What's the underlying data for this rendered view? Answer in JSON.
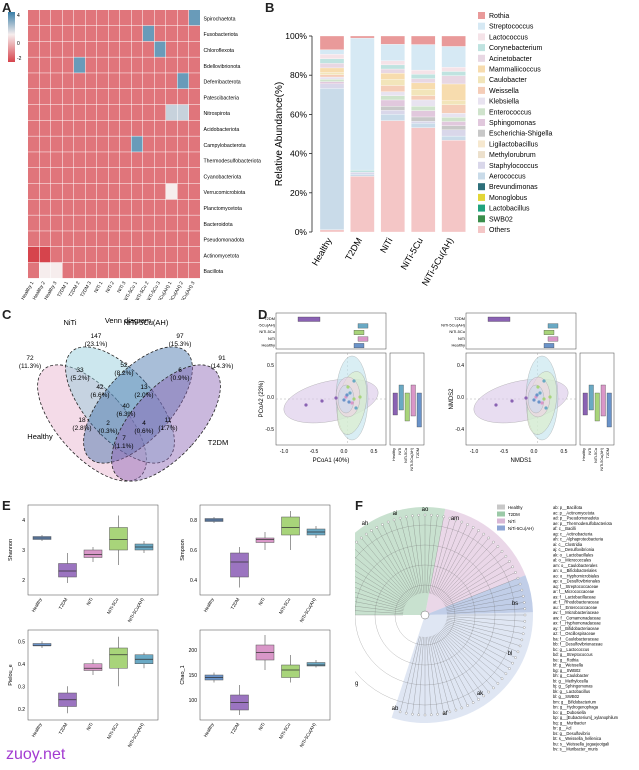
{
  "panels": {
    "A": "A",
    "B": "B",
    "C": "C",
    "D": "D",
    "E": "E",
    "F": "F"
  },
  "colors": {
    "low": "#d6444c",
    "mid": "#f6eded",
    "high": "#3a7fa8",
    "venn": [
      "#e7b0cc",
      "#8ec9d9",
      "#3d6fa8",
      "#8a62b3"
    ]
  },
  "heatmap": {
    "legend_ticks": [
      "4",
      "0",
      "-2"
    ],
    "rows": [
      "Spirochaetota",
      "Fusobacteriota",
      "Chloroflexota",
      "Bdellovibrionota",
      "Deferribacterota",
      "Patescibacteria",
      "Nitrospirota",
      "Acidobacteriota",
      "Campylobacterota",
      "Thermodesulfobacteriota",
      "Cyanobacteriota",
      "Verrucomicrobiota",
      "Planctomycetota",
      "Bacteroidota",
      "Pseudomonadota",
      "Actinomycetota",
      "Bacillota"
    ],
    "cols": [
      "Healthy 1",
      "Healthy 2",
      "Healthy 3",
      "T2DM 1",
      "T2DM 2",
      "T2DM 3",
      "NiTi 1",
      "NiTi 2",
      "NiTi 3",
      "NiTi-5Cu 1",
      "NiTi-5Cu 2",
      "NiTi-5Cu 3",
      "NiTi-5Cu(AH) 1",
      "NiTi-5Cu(AH) 2",
      "NiTi-5Cu(AH) 3"
    ],
    "values": [
      [
        -1,
        -1,
        -1,
        -1,
        -1,
        -1,
        -1,
        -1,
        -1,
        -1,
        -1,
        -1,
        -1,
        -1,
        3
      ],
      [
        -1,
        -1,
        -1,
        -1,
        -1,
        -1,
        -1,
        -1,
        -1,
        -1,
        3,
        -1,
        -1,
        -1,
        -1
      ],
      [
        -1,
        -1,
        -1,
        -1,
        -1,
        -1,
        -1,
        -1,
        -1,
        -1,
        -1,
        3,
        -1,
        -1,
        -1
      ],
      [
        -1,
        -1,
        -1,
        -1,
        3,
        -1,
        -1,
        -1,
        -1,
        -1,
        -1,
        -1,
        -1,
        -1,
        -1
      ],
      [
        -1,
        -1,
        -1,
        -1,
        -1,
        -1,
        -1,
        -1,
        -1,
        -1,
        -1,
        -1,
        -1,
        3,
        -1
      ],
      [
        -1,
        -1,
        -1,
        -1,
        -1,
        -1,
        -1,
        -1,
        -1,
        -1,
        -1,
        -1,
        -1,
        -1,
        -1
      ],
      [
        -1,
        -1,
        -1,
        -1,
        -1,
        -1,
        -1,
        -1,
        -1,
        -1,
        -1,
        -1,
        1,
        1,
        -1
      ],
      [
        -1,
        -1,
        -1,
        -1,
        -1,
        -1,
        -1,
        -1,
        -1,
        -1,
        -1,
        -1,
        -1,
        -1,
        -1
      ],
      [
        -1,
        -1,
        -1,
        -1,
        -1,
        -1,
        -1,
        -1,
        -1,
        3,
        -1,
        -1,
        -1,
        -1,
        -1
      ],
      [
        -1,
        -1,
        -1,
        -1,
        -1,
        -1,
        -1,
        -1,
        -1,
        -1,
        -1,
        -1,
        -1,
        -1,
        -1
      ],
      [
        -1,
        -1,
        -1,
        -1,
        -1,
        -1,
        -1,
        -1,
        -1,
        -1,
        -1,
        -1,
        -1,
        -1,
        -1
      ],
      [
        -1,
        -1,
        -1,
        -1,
        -1,
        -1,
        -1,
        -1,
        -1,
        -1,
        -1,
        -1,
        0,
        -1,
        -1
      ],
      [
        -1,
        -1,
        -1,
        -1,
        -1,
        -1,
        -1,
        -1,
        -1,
        -1,
        -1,
        -1,
        -1,
        -1,
        -1
      ],
      [
        -1,
        -1,
        -1,
        -1,
        -1,
        -1,
        -1,
        -1,
        -1,
        -1,
        -1,
        -1,
        -1,
        -1,
        -1
      ],
      [
        -1,
        -1,
        -1,
        -1,
        -1,
        -1,
        -1,
        -1,
        -1,
        -1,
        -1,
        -1,
        -1,
        -1,
        -1
      ],
      [
        -2,
        -2,
        -1,
        -1,
        -1,
        -1,
        -1,
        -1,
        -1,
        -1,
        -1,
        -1,
        -1,
        -1,
        -1
      ],
      [
        -1,
        0,
        0,
        -1,
        -1,
        -1,
        -1,
        -1,
        -1,
        -1,
        -1,
        -1,
        -1,
        -1,
        -1
      ]
    ]
  },
  "chart_data": [
    {
      "type": "bar",
      "stacked": true,
      "ylabel": "Relative Abundance(%)",
      "yticks": [
        "0%",
        "20%",
        "40%",
        "60%",
        "80%",
        "100%"
      ],
      "ylim": [
        0,
        100
      ],
      "categories": [
        "Healthy",
        "T2DM",
        "NiTi",
        "NiTi-5Cu",
        "NiTi-5Cu(AH)"
      ],
      "series": [
        {
          "name": "Others",
          "color": "#f4c6c6",
          "values": [
            1,
            27,
            54,
            49,
            44
          ]
        },
        {
          "name": "SWB02",
          "color": "#3b8e4b",
          "values": [
            0,
            0,
            0,
            0,
            0
          ]
        },
        {
          "name": "Lactobacillus",
          "color": "#21a37e",
          "values": [
            0,
            0,
            0,
            0,
            0
          ]
        },
        {
          "name": "Monoglobus",
          "color": "#e2d636",
          "values": [
            0,
            0,
            0,
            0,
            0
          ]
        },
        {
          "name": "Brevundimonas",
          "color": "#2e6f7a",
          "values": [
            0,
            0,
            0,
            0,
            0
          ]
        },
        {
          "name": "Aerococcus",
          "color": "#c9dbe9",
          "values": [
            62,
            1,
            3,
            2,
            2
          ]
        },
        {
          "name": "Staphylococcus",
          "color": "#d9d7ea",
          "values": [
            2,
            1,
            2,
            1,
            3
          ]
        },
        {
          "name": "Methylorubrum",
          "color": "#ece0cc",
          "values": [
            0,
            0,
            0,
            0,
            0
          ]
        },
        {
          "name": "Ligilactobacillus",
          "color": "#f6e8cf",
          "values": [
            0,
            0,
            0,
            0,
            0
          ]
        },
        {
          "name": "Escherichia-Shigella",
          "color": "#c8c8c8",
          "values": [
            0,
            0,
            2,
            2,
            2
          ]
        },
        {
          "name": "Sphingomonas",
          "color": "#e1c8dd",
          "values": [
            1,
            0,
            3,
            3,
            2
          ]
        },
        {
          "name": "Enterococcus",
          "color": "#cfe3cc",
          "values": [
            1,
            0,
            2,
            2,
            2
          ]
        },
        {
          "name": "Klebsiella",
          "color": "#e8e3f0",
          "values": [
            1,
            0,
            2,
            3,
            2
          ]
        },
        {
          "name": "Weissella",
          "color": "#f5cdb8",
          "values": [
            1,
            0,
            3,
            2,
            4
          ]
        },
        {
          "name": "Caulobacter",
          "color": "#f2e5ba",
          "values": [
            1,
            0,
            3,
            3,
            2
          ]
        },
        {
          "name": "Mammaliicoccus",
          "color": "#f7dcae",
          "values": [
            2,
            0,
            3,
            3,
            8
          ]
        },
        {
          "name": "Acinetobacter",
          "color": "#e8d7e3",
          "values": [
            2,
            0,
            2,
            2,
            4
          ]
        },
        {
          "name": "Corynebacterium",
          "color": "#bfe3e0",
          "values": [
            2,
            1,
            2,
            2,
            2
          ]
        },
        {
          "name": "Lactococcus",
          "color": "#f5e3e8",
          "values": [
            2,
            0,
            2,
            2,
            2
          ]
        },
        {
          "name": "Streptococcus",
          "color": "#d6e9f4",
          "values": [
            2,
            64,
            8,
            12,
            10
          ]
        },
        {
          "name": "Rothia",
          "color": "#e99a9a",
          "values": [
            6,
            1,
            4,
            4,
            5
          ]
        }
      ],
      "legend": [
        "Rothia",
        "Streptococcus",
        "Lactococcus",
        "Corynebacterium",
        "Acinetobacter",
        "Mammaliicoccus",
        "Caulobacter",
        "Weissella",
        "Klebsiella",
        "Enterococcus",
        "Sphingomonas",
        "Escherichia-Shigella",
        "Ligilactobacillus",
        "Methylorubrum",
        "Staphylococcus",
        "Aerococcus",
        "Brevundimonas",
        "Monoglobus",
        "Lactobacillus",
        "SWB02",
        "Others"
      ]
    },
    {
      "type": "box",
      "ylabel": "Shannon",
      "categories": [
        "Healthy",
        "T2DM",
        "NiTi",
        "NiTi-5Cu",
        "NiTi-5Cu(AH)"
      ],
      "colors": [
        "#6a93c9",
        "#9b74c0",
        "#d997c8",
        "#a8d47a",
        "#6aa9c4"
      ],
      "yticks": [
        "2",
        "3",
        "4"
      ],
      "ylim": [
        1.5,
        4.5
      ],
      "boxes": [
        [
          3.3,
          3.35,
          3.4,
          3.45,
          3.5
        ],
        [
          1.9,
          2.1,
          2.3,
          2.55,
          2.9
        ],
        [
          2.6,
          2.75,
          2.85,
          3.0,
          3.1
        ],
        [
          2.5,
          3.0,
          3.35,
          3.75,
          4.15
        ],
        [
          2.9,
          3.0,
          3.1,
          3.2,
          3.3
        ]
      ]
    },
    {
      "type": "box",
      "ylabel": "Simpson",
      "categories": [
        "Healthy",
        "T2DM",
        "NiTi",
        "NiTi-5Cu",
        "NiTi-5Cu(AH)"
      ],
      "colors": [
        "#6a93c9",
        "#9b74c0",
        "#d997c8",
        "#a8d47a",
        "#6aa9c4"
      ],
      "yticks": [
        "0.4",
        "0.6",
        "0.8"
      ],
      "ylim": [
        0.3,
        0.9
      ],
      "boxes": [
        [
          0.78,
          0.79,
          0.8,
          0.81,
          0.82
        ],
        [
          0.35,
          0.42,
          0.52,
          0.58,
          0.62
        ],
        [
          0.6,
          0.65,
          0.67,
          0.68,
          0.72
        ],
        [
          0.6,
          0.7,
          0.75,
          0.82,
          0.86
        ],
        [
          0.68,
          0.7,
          0.72,
          0.74,
          0.76
        ]
      ]
    },
    {
      "type": "box",
      "ylabel": "Pielou_e",
      "categories": [
        "Healthy",
        "T2DM",
        "NiTi",
        "NiTi-5Cu",
        "NiTi-5Cu(AH)"
      ],
      "colors": [
        "#6a93c9",
        "#9b74c0",
        "#d997c8",
        "#a8d47a",
        "#6aa9c4"
      ],
      "yticks": [
        "0.2",
        "0.3",
        "0.4",
        "0.5"
      ],
      "ylim": [
        0.15,
        0.55
      ],
      "boxes": [
        [
          0.47,
          0.48,
          0.48,
          0.49,
          0.5
        ],
        [
          0.18,
          0.21,
          0.24,
          0.27,
          0.3
        ],
        [
          0.35,
          0.37,
          0.38,
          0.4,
          0.42
        ],
        [
          0.3,
          0.38,
          0.44,
          0.47,
          0.52
        ],
        [
          0.38,
          0.4,
          0.42,
          0.44,
          0.45
        ]
      ]
    },
    {
      "type": "box",
      "ylabel": "Chao_1",
      "categories": [
        "Healthy",
        "T2DM",
        "NiTi",
        "NiTi-5Cu",
        "NiTi-5Cu(AH)"
      ],
      "colors": [
        "#6a93c9",
        "#9b74c0",
        "#d997c8",
        "#a8d47a",
        "#6aa9c4"
      ],
      "yticks": [
        "100",
        "150",
        "200"
      ],
      "ylim": [
        60,
        240
      ],
      "boxes": [
        [
          135,
          140,
          145,
          150,
          155
        ],
        [
          70,
          80,
          95,
          110,
          130
        ],
        [
          160,
          180,
          195,
          210,
          230
        ],
        [
          135,
          145,
          160,
          170,
          190
        ],
        [
          165,
          168,
          170,
          175,
          180
        ]
      ]
    }
  ],
  "venn": {
    "title": "Venn diagram",
    "sets": [
      "Healthy",
      "NiTi",
      "NiTi-5Cu(AH)",
      "T2DM"
    ],
    "regions": [
      {
        "n": "72",
        "p": "(11.3%)"
      },
      {
        "n": "147",
        "p": "(23.1%)"
      },
      {
        "n": "97",
        "p": "(15.3%)"
      },
      {
        "n": "91",
        "p": "(14.3%)"
      },
      {
        "n": "33",
        "p": "(5.2%)"
      },
      {
        "n": "52",
        "p": "(8.2%)"
      },
      {
        "n": "6",
        "p": "(0.9%)"
      },
      {
        "n": "42",
        "p": "(6.6%)"
      },
      {
        "n": "13",
        "p": "(2.0%)"
      },
      {
        "n": "40",
        "p": "(6.3%)"
      },
      {
        "n": "18",
        "p": "(2.8%)"
      },
      {
        "n": "11",
        "p": "(1.7%)"
      },
      {
        "n": "2",
        "p": "(0.3%)"
      },
      {
        "n": "4",
        "p": "(0.6%)"
      },
      {
        "n": "7",
        "p": "(1.1%)"
      }
    ]
  },
  "pca": {
    "xlabel": "PCoA1 (40%)",
    "ylabel": "PCoA2 (23%)",
    "xticks": [
      "-1.0",
      "-0.5",
      "0.0",
      "0.5"
    ],
    "yticks": [
      "0.5",
      "0.0",
      "-0.5"
    ],
    "groups": [
      "T2DM",
      "NiTi-5Cu(AH)",
      "NiTi-5Cu",
      "NiTi",
      "Healthy"
    ]
  },
  "nmds": {
    "xlabel": "NMDS1",
    "ylabel": "NMDS2",
    "xticks": [
      "-1.0",
      "-0.5",
      "0.0",
      "0.5"
    ],
    "yticks": [
      "0.4",
      "0.0",
      "-0.4"
    ],
    "groups": [
      "T2DM",
      "NiTi-5Cu(AH)",
      "NiTi-5Cu",
      "NiTi",
      "Healthy"
    ]
  },
  "cladogram": {
    "legend": [
      "Healthy",
      "T2DM",
      "NiTi",
      "NiTi-5Cu(AH)"
    ],
    "legend_colors": [
      "#c8c8c8",
      "#9bc9a7",
      "#d8b7d6",
      "#8ea6d5"
    ],
    "labels": [
      "ab: p__Bacillota",
      "ac: p__Actinomycetota",
      "ad: p__Pseudomonadota",
      "ae: p__Thermodesulfobacteriota",
      "af: c__Bacilli",
      "ag: c__Actinobacteria",
      "ah: c__Alphaproteobacteria",
      "ai: c__Clostridia",
      "aj: c__Desulfovibrionia",
      "ak: o__Lactobacillales",
      "al: o__Micrococcales",
      "am: o__Caulobacterales",
      "an: o__Bifidobacteriales",
      "ao: o__Hyphomicrobiales",
      "ap: o__Desulfovibrionales",
      "aq: f__Streptococcaceae",
      "ar: f__Micrococcaceae",
      "as: f__Lactobacillaceae",
      "at: f__Rhodobacteraceae",
      "au: f__Enterococcaceae",
      "av: f__Microbacteriaceae",
      "aw: f__Comamonadaceae",
      "ax: f__Hyphomonadaceae",
      "ay: f__Bifidobacteriaceae",
      "az: f__Oscillospiraceae",
      "ba: f__Caulobacteraceae",
      "bb: f__Desulfovibrionaceae",
      "bc: g__Lactococcus",
      "bd: g__Streptococcus",
      "be: g__Rothia",
      "bf: g__Weissella",
      "bg: g__SWB02",
      "bh: g__Caulobacter",
      "bi: g__Methylocella",
      "bj: g__Sphingomonas",
      "bk: g__Lactobacillus",
      "bl: g__SWB02",
      "bm: g__Bifidobacterium",
      "bn: g__Hydrogenophaga",
      "bo: g__Dubosiella",
      "bp: g__[Eubacterium]_xylanophilum",
      "bq: g__Muribacter",
      "br: g__Acl",
      "bs: g__Desulfovibrio",
      "bt: s__Weissella_hellenica",
      "bu: s__Weissella_jogaejeotgali",
      "bv: s__Muribacter_muris"
    ]
  },
  "watermark": "zuoy.net"
}
